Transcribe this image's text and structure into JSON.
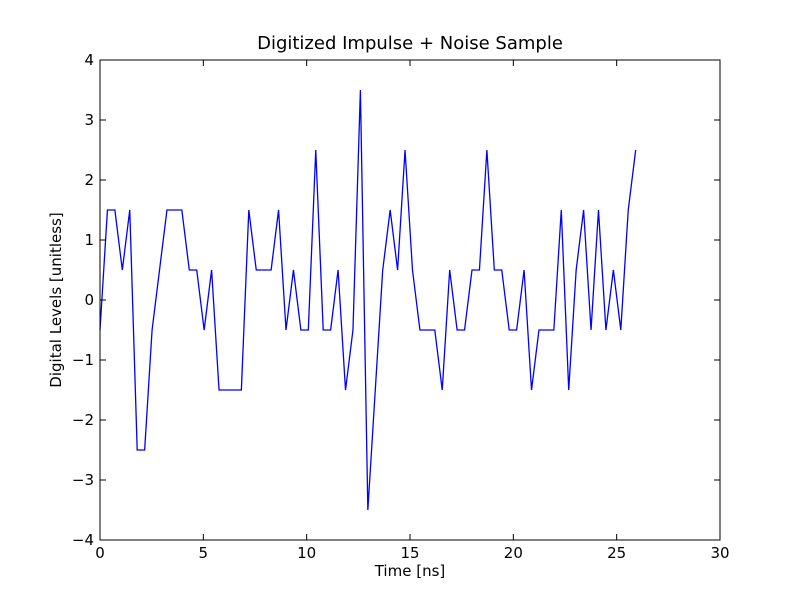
{
  "chart_data": {
    "type": "line",
    "title": "Digitized Impulse + Noise Sample",
    "xlabel": "Time [ns]",
    "ylabel": "Digital Levels [unitless]",
    "xlim": [
      0,
      30
    ],
    "ylim": [
      -4,
      4
    ],
    "xticks": [
      0,
      5,
      10,
      15,
      20,
      25,
      30
    ],
    "yticks": [
      -4,
      -3,
      -2,
      -1,
      0,
      1,
      2,
      3,
      4
    ],
    "xtick_labels": [
      "0",
      "5",
      "10",
      "15",
      "20",
      "25",
      "30"
    ],
    "ytick_labels": [
      "−4",
      "−3",
      "−2",
      "−1",
      "0",
      "1",
      "2",
      "3",
      "4"
    ],
    "grid": false,
    "legend": false,
    "series": [
      {
        "color": "#0000ff",
        "x": [
          0.0,
          0.36,
          0.72,
          1.08,
          1.44,
          1.8,
          2.16,
          2.52,
          2.88,
          3.24,
          3.6,
          3.96,
          4.32,
          4.68,
          5.04,
          5.4,
          5.76,
          6.12,
          6.48,
          6.84,
          7.2,
          7.56,
          7.92,
          8.28,
          8.64,
          9.0,
          9.36,
          9.72,
          10.08,
          10.44,
          10.8,
          11.16,
          11.52,
          11.88,
          12.24,
          12.6,
          12.96,
          13.32,
          13.68,
          14.04,
          14.4,
          14.76,
          15.12,
          15.48,
          15.84,
          16.2,
          16.56,
          16.92,
          17.28,
          17.64,
          18.0,
          18.36,
          18.72,
          19.08,
          19.44,
          19.8,
          20.16,
          20.52,
          20.88,
          21.24,
          21.6,
          21.96,
          22.32,
          22.68,
          23.04,
          23.4,
          23.76,
          24.12,
          24.48,
          24.84,
          25.2,
          25.56,
          25.92
        ],
        "y": [
          -0.5,
          1.5,
          1.5,
          0.5,
          1.5,
          -2.5,
          -2.5,
          -0.5,
          0.5,
          1.5,
          1.5,
          1.5,
          0.5,
          0.5,
          -0.5,
          0.5,
          -1.5,
          -1.5,
          -1.5,
          -1.5,
          1.5,
          0.5,
          0.5,
          0.5,
          1.5,
          -0.5,
          0.5,
          -0.5,
          -0.5,
          2.5,
          -0.5,
          -0.5,
          0.5,
          -1.5,
          -0.5,
          3.5,
          -3.5,
          -1.5,
          0.5,
          1.5,
          0.5,
          2.5,
          0.5,
          -0.5,
          -0.5,
          -0.5,
          -1.5,
          0.5,
          -0.5,
          -0.5,
          0.5,
          0.5,
          2.5,
          0.5,
          0.5,
          -0.5,
          -0.5,
          0.5,
          -1.5,
          -0.5,
          -0.5,
          -0.5,
          1.5,
          -1.5,
          0.5,
          1.5,
          -0.5,
          1.5,
          -0.5,
          0.5,
          -0.5,
          1.5,
          2.5
        ]
      }
    ]
  }
}
